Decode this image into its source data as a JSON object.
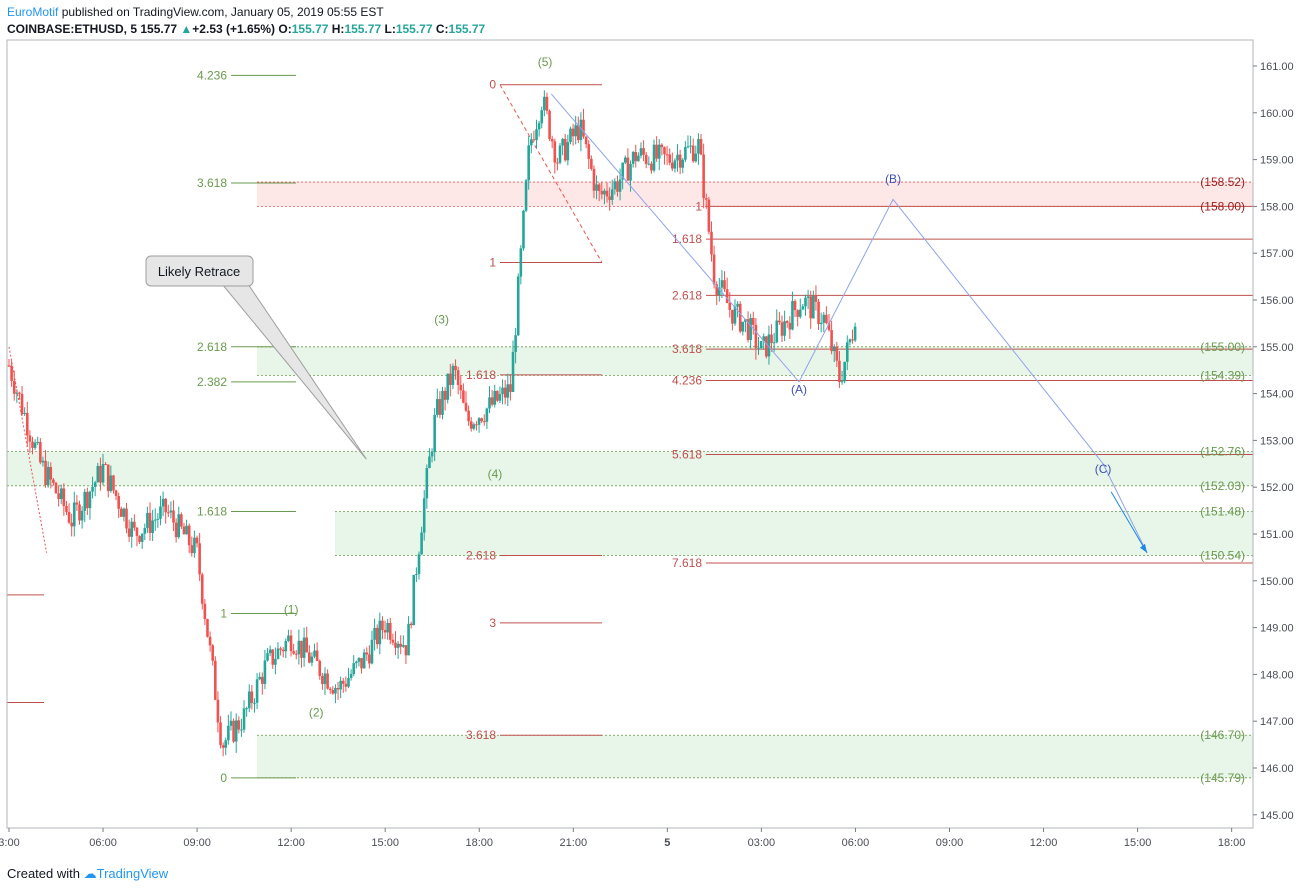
{
  "header": {
    "author": "EuroMotif",
    "published": "published on TradingView.com, January 05, 2019 05:55 EST",
    "symbol": "COINBASE:ETHUSD, 5",
    "last": "155.77",
    "change_arrow": "▲",
    "change": "+2.53 (+1.65%)",
    "o_label": "O:",
    "o_value": "155.77",
    "h_label": "H:",
    "h_value": "155.77",
    "l_label": "L:",
    "l_value": "155.77",
    "c_label": "C:",
    "c_value": "155.77"
  },
  "footer": {
    "created": "Created with",
    "brand": "TradingView",
    "logo_icon": "tradingview-logo-icon"
  },
  "colors": {
    "up": "#26a69a",
    "down": "#ef5350",
    "fib_green": "#6a9a4f",
    "fib_red": "#c0504d",
    "zone_green": "#e8f5e9",
    "zone_red": "#fde7e7",
    "wave_blue": "#3f51b5",
    "projection": "#90a4e8"
  },
  "chart_data": {
    "type": "candlestick",
    "title": "",
    "symbol": "COINBASE:ETHUSD",
    "interval": "5",
    "ylim": [
      145,
      161.3
    ],
    "y_ticks": [
      "161.00",
      "160.00",
      "159.00",
      "158.00",
      "157.00",
      "156.00",
      "155.00",
      "154.00",
      "153.00",
      "152.00",
      "151.00",
      "150.00",
      "149.00",
      "148.00",
      "147.00",
      "146.00",
      "145.00"
    ],
    "x_ticks": [
      {
        "t": 0,
        "label": "3:00"
      },
      {
        "t": 3,
        "label": "06:00"
      },
      {
        "t": 6,
        "label": "09:00"
      },
      {
        "t": 9,
        "label": "12:00"
      },
      {
        "t": 12,
        "label": "15:00"
      },
      {
        "t": 15,
        "label": "18:00"
      },
      {
        "t": 18,
        "label": "21:00"
      },
      {
        "t": 21,
        "label": "5"
      },
      {
        "t": 24,
        "label": "03:00"
      },
      {
        "t": 27,
        "label": "06:00"
      },
      {
        "t": 30,
        "label": "09:00"
      },
      {
        "t": 33,
        "label": "12:00"
      },
      {
        "t": 36,
        "label": "15:00"
      },
      {
        "t": 39,
        "label": "18:00"
      }
    ],
    "price_path": [
      [
        0,
        154.6
      ],
      [
        1,
        152.5
      ],
      [
        2,
        151.3
      ],
      [
        3,
        152.4
      ],
      [
        4,
        151.0
      ],
      [
        5,
        151.5
      ],
      [
        6,
        150.6
      ],
      [
        6.8,
        146.5
      ],
      [
        7.5,
        147.1
      ],
      [
        8.2,
        148.2
      ],
      [
        9,
        148.8
      ],
      [
        9.8,
        148.2
      ],
      [
        10.5,
        147.7
      ],
      [
        11.3,
        148.3
      ],
      [
        12,
        149.1
      ],
      [
        12.7,
        148.6
      ],
      [
        13.2,
        151.5
      ],
      [
        13.6,
        153.5
      ],
      [
        14.2,
        154.5
      ],
      [
        14.6,
        153.4
      ],
      [
        15.3,
        153.7
      ],
      [
        16,
        154.1
      ],
      [
        16.6,
        159.3
      ],
      [
        17,
        160.3
      ],
      [
        17.5,
        159.0
      ],
      [
        18.2,
        159.7
      ],
      [
        18.8,
        158.2
      ],
      [
        19.4,
        158.5
      ],
      [
        20,
        159.1
      ],
      [
        21,
        159.0
      ],
      [
        22,
        159.3
      ],
      [
        22.5,
        156.5
      ],
      [
        23,
        155.8
      ],
      [
        23.6,
        155.4
      ],
      [
        24,
        154.9
      ],
      [
        24.6,
        155.4
      ],
      [
        25.3,
        156.0
      ],
      [
        26,
        155.6
      ],
      [
        26.5,
        154.3
      ],
      [
        26.9,
        155.3
      ],
      [
        27,
        155.77
      ]
    ],
    "wave_labels": [
      {
        "label": "(1)",
        "t": 9,
        "price": 149.3
      },
      {
        "label": "(2)",
        "t": 9.8,
        "price": 147.1
      },
      {
        "label": "(3)",
        "t": 13.8,
        "price": 155.5
      },
      {
        "label": "(4)",
        "t": 15.5,
        "price": 152.2
      },
      {
        "label": "(5)",
        "t": 17.1,
        "price": 161.0
      },
      {
        "label": "(A)",
        "t": 25.2,
        "price": 154.0
      },
      {
        "label": "(B)",
        "t": 28.2,
        "price": 158.5
      },
      {
        "label": "(C)",
        "t": 34.9,
        "price": 152.3
      }
    ],
    "projection": [
      {
        "t": 25.2,
        "price": 154.25
      },
      {
        "t": 28.2,
        "price": 158.15
      },
      {
        "t": 34.9,
        "price": 152.5
      },
      {
        "t": 36.3,
        "price": 150.6
      }
    ],
    "fib_green": [
      {
        "label": "4.236",
        "price": 160.8
      },
      {
        "label": "3.618",
        "price": 158.5
      },
      {
        "label": "2.618",
        "price": 155.0
      },
      {
        "label": "2.382",
        "price": 154.25
      },
      {
        "label": "1.618",
        "price": 151.48
      },
      {
        "label": "1",
        "price": 149.3
      },
      {
        "label": "0",
        "price": 145.79
      }
    ],
    "fib_red_mid": [
      {
        "label": "0",
        "price": 160.6
      },
      {
        "label": "1",
        "price": 156.8
      },
      {
        "label": "1.618",
        "price": 154.4
      },
      {
        "label": "2.618",
        "price": 150.54
      },
      {
        "label": "3",
        "price": 149.1
      },
      {
        "label": "3.618",
        "price": 146.7
      }
    ],
    "fib_red_right": [
      {
        "label": "1",
        "price": 158.0
      },
      {
        "label": "1.618",
        "price": 157.3
      },
      {
        "label": "2.618",
        "price": 156.1
      },
      {
        "label": "3.618",
        "price": 154.95
      },
      {
        "label": "4.236",
        "price": 154.28
      },
      {
        "label": "5.618",
        "price": 152.7
      },
      {
        "label": "7.618",
        "price": 150.38
      }
    ],
    "right_levels": [
      {
        "label": "(158.52)",
        "price": 158.52,
        "color": "red"
      },
      {
        "label": "(158.00)",
        "price": 158.0,
        "color": "red"
      },
      {
        "label": "(155.00)",
        "price": 155.0,
        "color": "green"
      },
      {
        "label": "(154.39)",
        "price": 154.39,
        "color": "green"
      },
      {
        "label": "(152.76)",
        "price": 152.76,
        "color": "green"
      },
      {
        "label": "(152.03)",
        "price": 152.03,
        "color": "green"
      },
      {
        "label": "(151.48)",
        "price": 151.48,
        "color": "green"
      },
      {
        "label": "(150.54)",
        "price": 150.54,
        "color": "green"
      },
      {
        "label": "(146.70)",
        "price": 146.7,
        "color": "green"
      },
      {
        "label": "(145.79)",
        "price": 145.79,
        "color": "green"
      }
    ],
    "zones": [
      {
        "from": 158.0,
        "to": 158.52,
        "color": "red"
      },
      {
        "from": 154.39,
        "to": 155.0,
        "color": "green"
      },
      {
        "from": 152.03,
        "to": 152.76,
        "color": "green"
      },
      {
        "from": 150.54,
        "to": 151.48,
        "color": "green"
      },
      {
        "from": 145.79,
        "to": 146.7,
        "color": "green"
      }
    ],
    "callout": {
      "text": "Likely Retrace",
      "target_t": 11.4,
      "target_price": 152.6
    }
  }
}
